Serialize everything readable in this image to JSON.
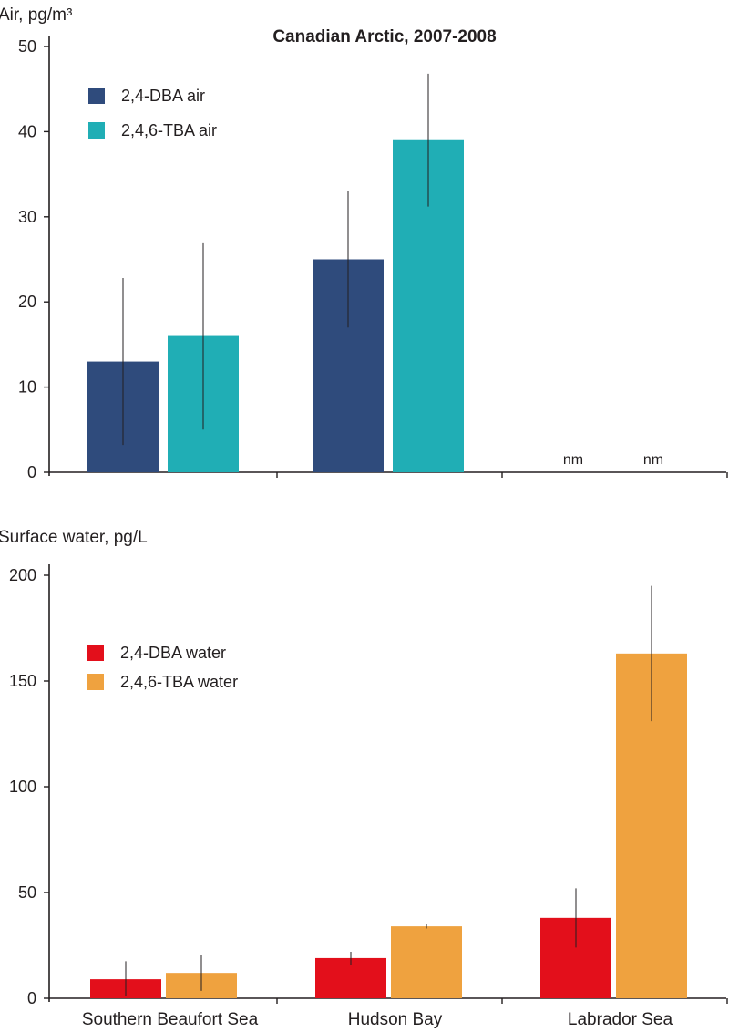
{
  "chart_data": [
    {
      "type": "bar",
      "title": "Canadian Arctic, 2007-2008",
      "ylabel": "Air, pg/m³",
      "ylim": [
        0,
        50
      ],
      "yticks": [
        0,
        10,
        20,
        30,
        40,
        50
      ],
      "categories": [
        "Southern Beaufort Sea",
        "Hudson Bay",
        "Labrador Sea"
      ],
      "show_category_labels": false,
      "series": [
        {
          "name": "2,4-DBA air",
          "color": "#2f4b7c",
          "values": [
            13,
            25,
            null
          ],
          "err_low": [
            3.2,
            17,
            null
          ],
          "err_high": [
            22.8,
            33,
            null
          ],
          "missing_label": [
            "",
            "",
            "nm"
          ]
        },
        {
          "name": "2,4,6-TBA air",
          "color": "#20aeb5",
          "values": [
            16,
            39,
            null
          ],
          "err_low": [
            5,
            31.2,
            null
          ],
          "err_high": [
            27,
            46.8,
            null
          ],
          "missing_label": [
            "",
            "",
            "nm"
          ]
        }
      ],
      "legend_position": "top-left",
      "grid": false
    },
    {
      "type": "bar",
      "title": "",
      "ylabel": "Surface water, pg/L",
      "ylim": [
        0,
        200
      ],
      "yticks": [
        0,
        50,
        100,
        150,
        200
      ],
      "categories": [
        "Southern Beaufort Sea",
        "Hudson Bay",
        "Labrador Sea"
      ],
      "show_category_labels": true,
      "series": [
        {
          "name": "2,4-DBA water",
          "color": "#e30f1b",
          "values": [
            9,
            19,
            38
          ],
          "err_low": [
            1,
            15.5,
            24
          ],
          "err_high": [
            17.5,
            22,
            52
          ],
          "missing_label": [
            "",
            "",
            ""
          ]
        },
        {
          "name": "2,4,6-TBA water",
          "color": "#efa23f",
          "values": [
            12,
            34,
            163
          ],
          "err_low": [
            3.5,
            33,
            131
          ],
          "err_high": [
            20.5,
            35,
            195
          ],
          "missing_label": [
            "",
            "",
            ""
          ]
        }
      ],
      "legend_position": "top-left",
      "grid": false
    }
  ]
}
